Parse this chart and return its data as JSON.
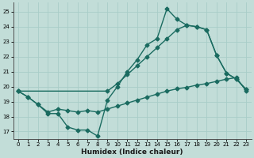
{
  "xlabel": "Humidex (Indice chaleur)",
  "bg_color": "#c2ddd8",
  "grid_color": "#a8cdc8",
  "line_color": "#1a6b60",
  "xlim": [
    -0.5,
    23.5
  ],
  "ylim": [
    16.5,
    25.6
  ],
  "xticks": [
    0,
    1,
    2,
    3,
    4,
    5,
    6,
    7,
    8,
    9,
    10,
    11,
    12,
    13,
    14,
    15,
    16,
    17,
    18,
    19,
    20,
    21,
    22,
    23
  ],
  "yticks": [
    17,
    18,
    19,
    20,
    21,
    22,
    23,
    24,
    25
  ],
  "line1_x": [
    0,
    1,
    2,
    3,
    4,
    5,
    6,
    7,
    8,
    9,
    10,
    11,
    12,
    13,
    14,
    15,
    16,
    17,
    18,
    19,
    20,
    21,
    22,
    23
  ],
  "line1_y": [
    19.7,
    19.3,
    18.8,
    18.2,
    18.2,
    17.3,
    17.1,
    17.1,
    16.7,
    19.1,
    20.0,
    21.0,
    21.8,
    22.8,
    23.2,
    25.2,
    24.5,
    24.1,
    24.0,
    23.8,
    22.1,
    20.9,
    20.5,
    19.8
  ],
  "line2_x": [
    0,
    9,
    10,
    11,
    12,
    13,
    14,
    15,
    16,
    17,
    18,
    19,
    20,
    21,
    22,
    23
  ],
  "line2_y": [
    19.7,
    19.7,
    20.2,
    20.8,
    21.4,
    22.0,
    22.6,
    23.2,
    23.8,
    24.1,
    24.0,
    23.8,
    22.1,
    20.9,
    20.5,
    19.8
  ],
  "line3_x": [
    0,
    1,
    2,
    3,
    4,
    5,
    6,
    7,
    8,
    9,
    10,
    11,
    12,
    13,
    14,
    15,
    16,
    17,
    18,
    19,
    20,
    21,
    22,
    23
  ],
  "line3_y": [
    19.7,
    19.3,
    18.8,
    18.3,
    18.5,
    18.4,
    18.3,
    18.4,
    18.3,
    18.5,
    18.7,
    18.9,
    19.1,
    19.3,
    19.5,
    19.7,
    19.85,
    19.95,
    20.1,
    20.2,
    20.35,
    20.5,
    20.6,
    19.7
  ],
  "marker": "D",
  "marker_size": 2.5,
  "linewidth": 1.0
}
